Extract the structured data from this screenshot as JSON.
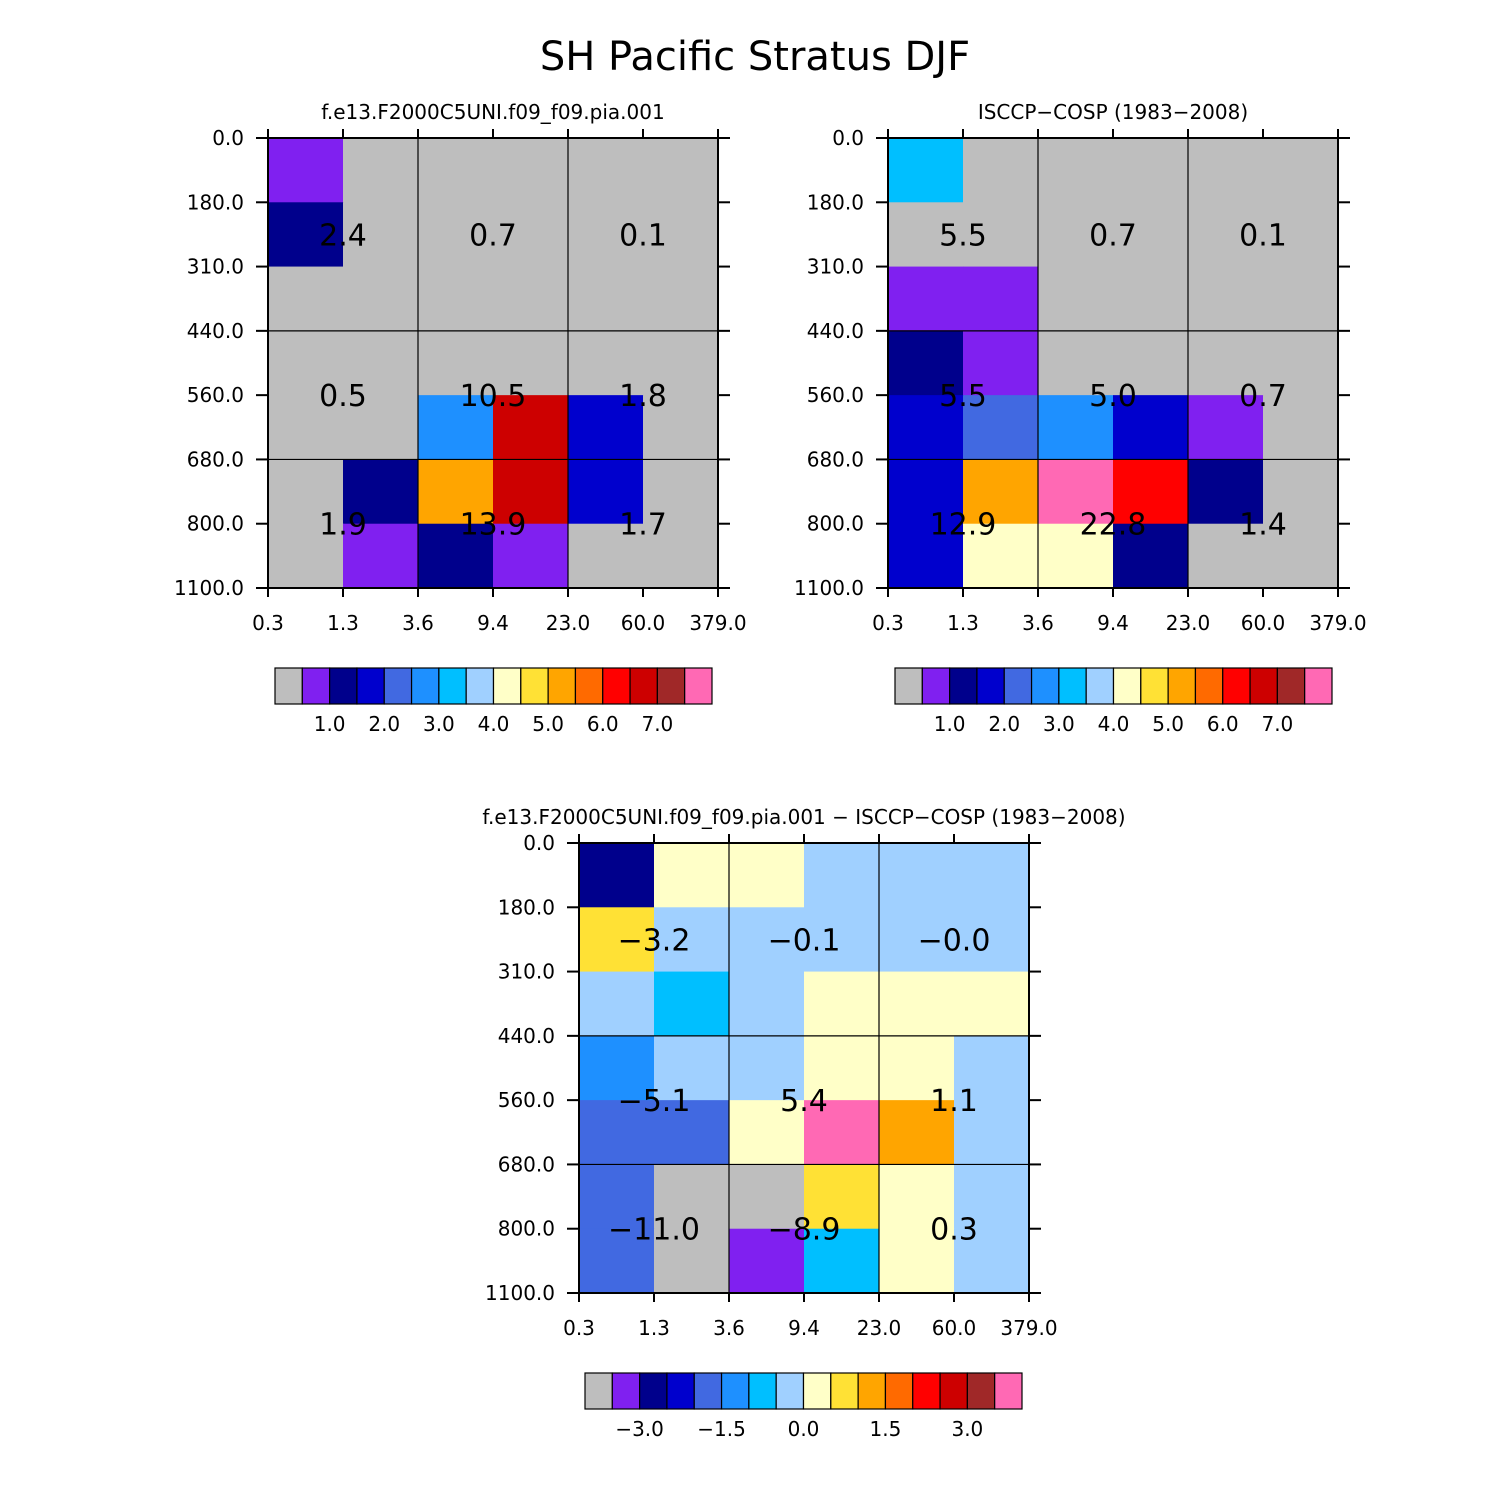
{
  "figure": {
    "title": "SH Pacific Stratus DJF"
  },
  "chart_data": {
    "type": "heatmap",
    "title": "SH Pacific Stratus DJF",
    "x_ticks": [
      "0.3",
      "1.3",
      "3.6",
      "9.4",
      "23.0",
      "60.0",
      "379.0"
    ],
    "y_ticks": [
      "0.0",
      "180.0",
      "310.0",
      "440.0",
      "560.0",
      "680.0",
      "800.0",
      "1100.0"
    ],
    "panels": [
      {
        "name": "model",
        "title": "f.e13.F2000C5UNI.f09_f09.pia.001",
        "palette": [
          "#bebebe",
          "#8020f0",
          "#00008c",
          "#0000cd",
          "#4169e1",
          "#1e90ff",
          "#00bfff",
          "#a0d0ff",
          "#ffffc8",
          "#ffe135",
          "#ffa500",
          "#ff6a00",
          "#ff0000",
          "#cd0000",
          "#a02828",
          "#ff69b4"
        ],
        "cbar_labels": [
          "1.0",
          "2.0",
          "3.0",
          "4.0",
          "5.0",
          "6.0",
          "7.0"
        ],
        "cbar_label_boundaries": [
          2,
          4,
          6,
          8,
          10,
          12,
          14
        ],
        "cells": [
          [
            1,
            0,
            0,
            0,
            0,
            0
          ],
          [
            2,
            0,
            0,
            0,
            0,
            0
          ],
          [
            0,
            0,
            0,
            0,
            0,
            0
          ],
          [
            0,
            0,
            0,
            0,
            0,
            0
          ],
          [
            0,
            0,
            5,
            13,
            3,
            0
          ],
          [
            0,
            2,
            10,
            13,
            3,
            0
          ],
          [
            0,
            1,
            2,
            1,
            0,
            0
          ]
        ],
        "labels": [
          {
            "text": "2.4",
            "xi": 1,
            "yi": 1.5
          },
          {
            "text": "0.7",
            "xi": 3,
            "yi": 1.5
          },
          {
            "text": "0.1",
            "xi": 5,
            "yi": 1.5
          },
          {
            "text": "0.5",
            "xi": 1,
            "yi": 4
          },
          {
            "text": "10.5",
            "xi": 3,
            "yi": 4
          },
          {
            "text": "1.8",
            "xi": 5,
            "yi": 4
          },
          {
            "text": "1.9",
            "xi": 1,
            "yi": 6
          },
          {
            "text": "13.9",
            "xi": 3,
            "yi": 6
          },
          {
            "text": "1.7",
            "xi": 5,
            "yi": 6
          }
        ]
      },
      {
        "name": "obs",
        "title": "ISCCP-COSP (1983-2008)",
        "palette": [
          "#bebebe",
          "#8020f0",
          "#00008c",
          "#0000cd",
          "#4169e1",
          "#1e90ff",
          "#00bfff",
          "#a0d0ff",
          "#ffffc8",
          "#ffe135",
          "#ffa500",
          "#ff6a00",
          "#ff0000",
          "#cd0000",
          "#a02828",
          "#ff69b4"
        ],
        "cbar_labels": [
          "1.0",
          "2.0",
          "3.0",
          "4.0",
          "5.0",
          "6.0",
          "7.0"
        ],
        "cbar_label_boundaries": [
          2,
          4,
          6,
          8,
          10,
          12,
          14
        ],
        "cells": [
          [
            6,
            0,
            0,
            0,
            0,
            0
          ],
          [
            0,
            0,
            0,
            0,
            0,
            0
          ],
          [
            1,
            1,
            0,
            0,
            0,
            0
          ],
          [
            2,
            1,
            0,
            0,
            0,
            0
          ],
          [
            3,
            4,
            5,
            3,
            1,
            0
          ],
          [
            3,
            10,
            15,
            12,
            2,
            0
          ],
          [
            3,
            8,
            8,
            2,
            0,
            0
          ]
        ],
        "labels": [
          {
            "text": "5.5",
            "xi": 1,
            "yi": 1.5
          },
          {
            "text": "0.7",
            "xi": 3,
            "yi": 1.5
          },
          {
            "text": "0.1",
            "xi": 5,
            "yi": 1.5
          },
          {
            "text": "5.5",
            "xi": 1,
            "yi": 4
          },
          {
            "text": "5.0",
            "xi": 3,
            "yi": 4
          },
          {
            "text": "0.7",
            "xi": 5,
            "yi": 4
          },
          {
            "text": "12.9",
            "xi": 1,
            "yi": 6
          },
          {
            "text": "22.8",
            "xi": 3,
            "yi": 6
          },
          {
            "text": "1.4",
            "xi": 5,
            "yi": 6
          }
        ]
      },
      {
        "name": "diff",
        "title": "f.e13.F2000C5UNI.f09_f09.pia.001 - ISCCP-COSP (1983-2008)",
        "palette": [
          "#bebebe",
          "#8020f0",
          "#00008c",
          "#0000cd",
          "#4169e1",
          "#1e90ff",
          "#00bfff",
          "#a0d0ff",
          "#ffffc8",
          "#ffe135",
          "#ffa500",
          "#ff6a00",
          "#ff0000",
          "#cd0000",
          "#a02828",
          "#ff69b4"
        ],
        "cbar_labels": [
          "-3.0",
          "-1.5",
          "0.0",
          "1.5",
          "3.0"
        ],
        "cbar_label_boundaries": [
          2,
          5,
          8,
          11,
          14
        ],
        "cells": [
          [
            2,
            8,
            8,
            7,
            7,
            7
          ],
          [
            9,
            7,
            7,
            7,
            7,
            7
          ],
          [
            7,
            6,
            7,
            8,
            8,
            8
          ],
          [
            5,
            7,
            7,
            8,
            8,
            7
          ],
          [
            4,
            4,
            8,
            15,
            10,
            7
          ],
          [
            4,
            0,
            0,
            9,
            8,
            7
          ],
          [
            4,
            0,
            1,
            6,
            8,
            7
          ]
        ],
        "labels": [
          {
            "text": "-3.2",
            "xi": 1,
            "yi": 1.5
          },
          {
            "text": "-0.1",
            "xi": 3,
            "yi": 1.5
          },
          {
            "text": "-0.0",
            "xi": 5,
            "yi": 1.5
          },
          {
            "text": "-5.1",
            "xi": 1,
            "yi": 4
          },
          {
            "text": "5.4",
            "xi": 3,
            "yi": 4
          },
          {
            "text": "1.1",
            "xi": 5,
            "yi": 4
          },
          {
            "text": "-11.0",
            "xi": 1,
            "yi": 6
          },
          {
            "text": "-8.9",
            "xi": 3,
            "yi": 6
          },
          {
            "text": "0.3",
            "xi": 5,
            "yi": 6
          }
        ]
      }
    ]
  }
}
